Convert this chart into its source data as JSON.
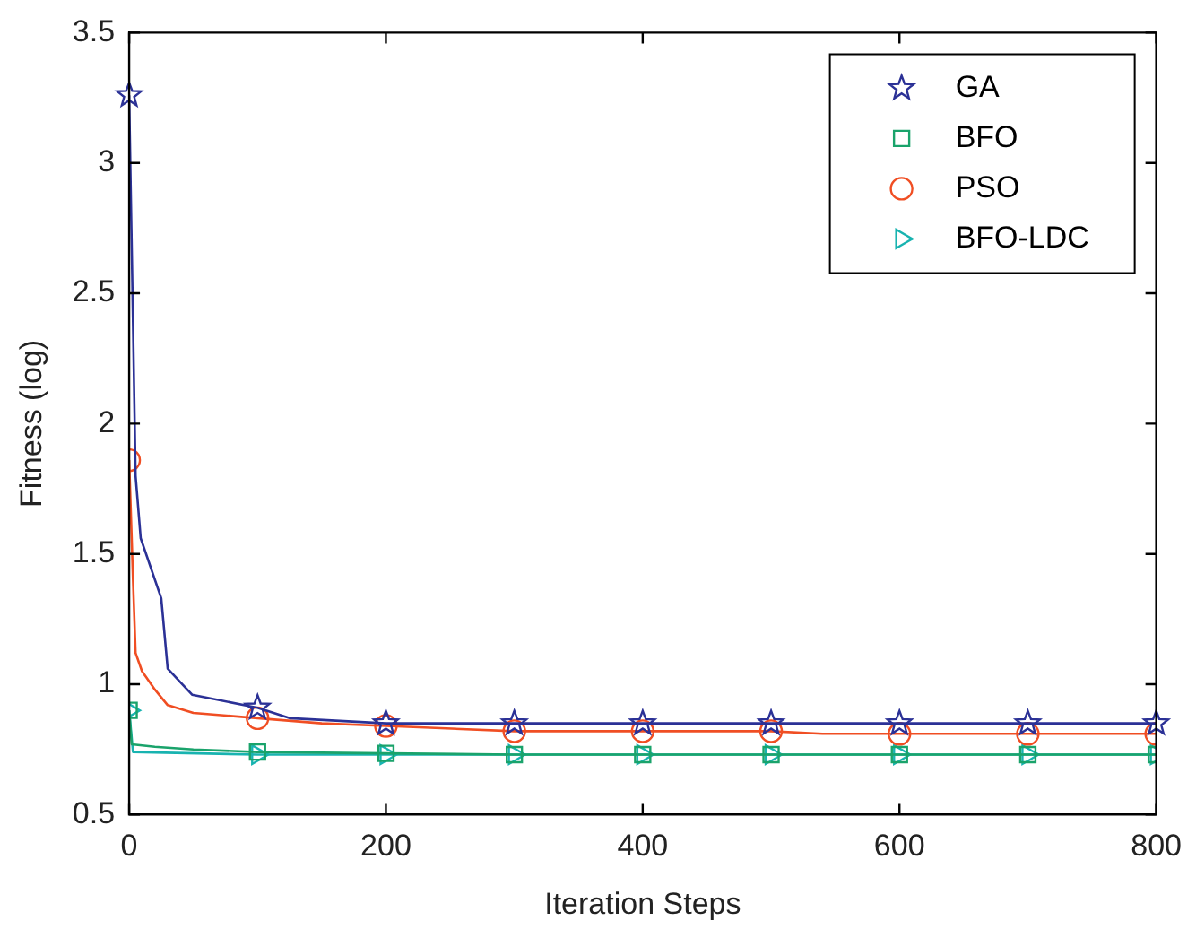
{
  "chart_data": {
    "type": "line",
    "xlabel": "Iteration Steps",
    "ylabel": "Fitness (log)",
    "xlim": [
      0,
      800
    ],
    "xticks": [
      0,
      200,
      400,
      600,
      800
    ],
    "ylim": [
      0.5,
      3.5
    ],
    "yticks": [
      0.5,
      1,
      1.5,
      2,
      2.5,
      3,
      3.5
    ],
    "grid": false,
    "legend": "top right",
    "line_style": "solid",
    "series": [
      {
        "name": "GA",
        "color": "#2b3196",
        "marker": "star",
        "x": [
          0,
          5,
          9,
          25,
          30,
          49,
          100,
          125,
          200,
          300,
          400,
          500,
          600,
          700,
          800
        ],
        "values": [
          3.26,
          1.8,
          1.56,
          1.33,
          1.06,
          0.96,
          0.91,
          0.87,
          0.85,
          0.85,
          0.85,
          0.85,
          0.85,
          0.85,
          0.85
        ]
      },
      {
        "name": "BFO",
        "color": "#1aa36b",
        "marker": "square",
        "x": [
          0,
          2,
          20,
          50,
          100,
          200,
          300,
          400,
          500,
          600,
          700,
          800
        ],
        "values": [
          0.9,
          0.77,
          0.76,
          0.75,
          0.74,
          0.735,
          0.73,
          0.73,
          0.73,
          0.73,
          0.73,
          0.73
        ]
      },
      {
        "name": "PSO",
        "color": "#f04e23",
        "marker": "circle",
        "x": [
          0,
          3,
          5,
          10,
          20,
          30,
          50,
          100,
          150,
          200,
          300,
          400,
          500,
          540,
          600,
          700,
          800
        ],
        "values": [
          1.86,
          1.4,
          1.12,
          1.05,
          0.98,
          0.92,
          0.89,
          0.87,
          0.85,
          0.84,
          0.82,
          0.82,
          0.82,
          0.81,
          0.81,
          0.81,
          0.81
        ]
      },
      {
        "name": "BFO-LDC",
        "color": "#18b3b0",
        "marker": "triangle",
        "x": [
          0,
          3,
          100,
          200,
          300,
          400,
          500,
          600,
          700,
          800
        ],
        "values": [
          0.9,
          0.74,
          0.73,
          0.73,
          0.73,
          0.73,
          0.73,
          0.73,
          0.73,
          0.73
        ]
      }
    ]
  }
}
